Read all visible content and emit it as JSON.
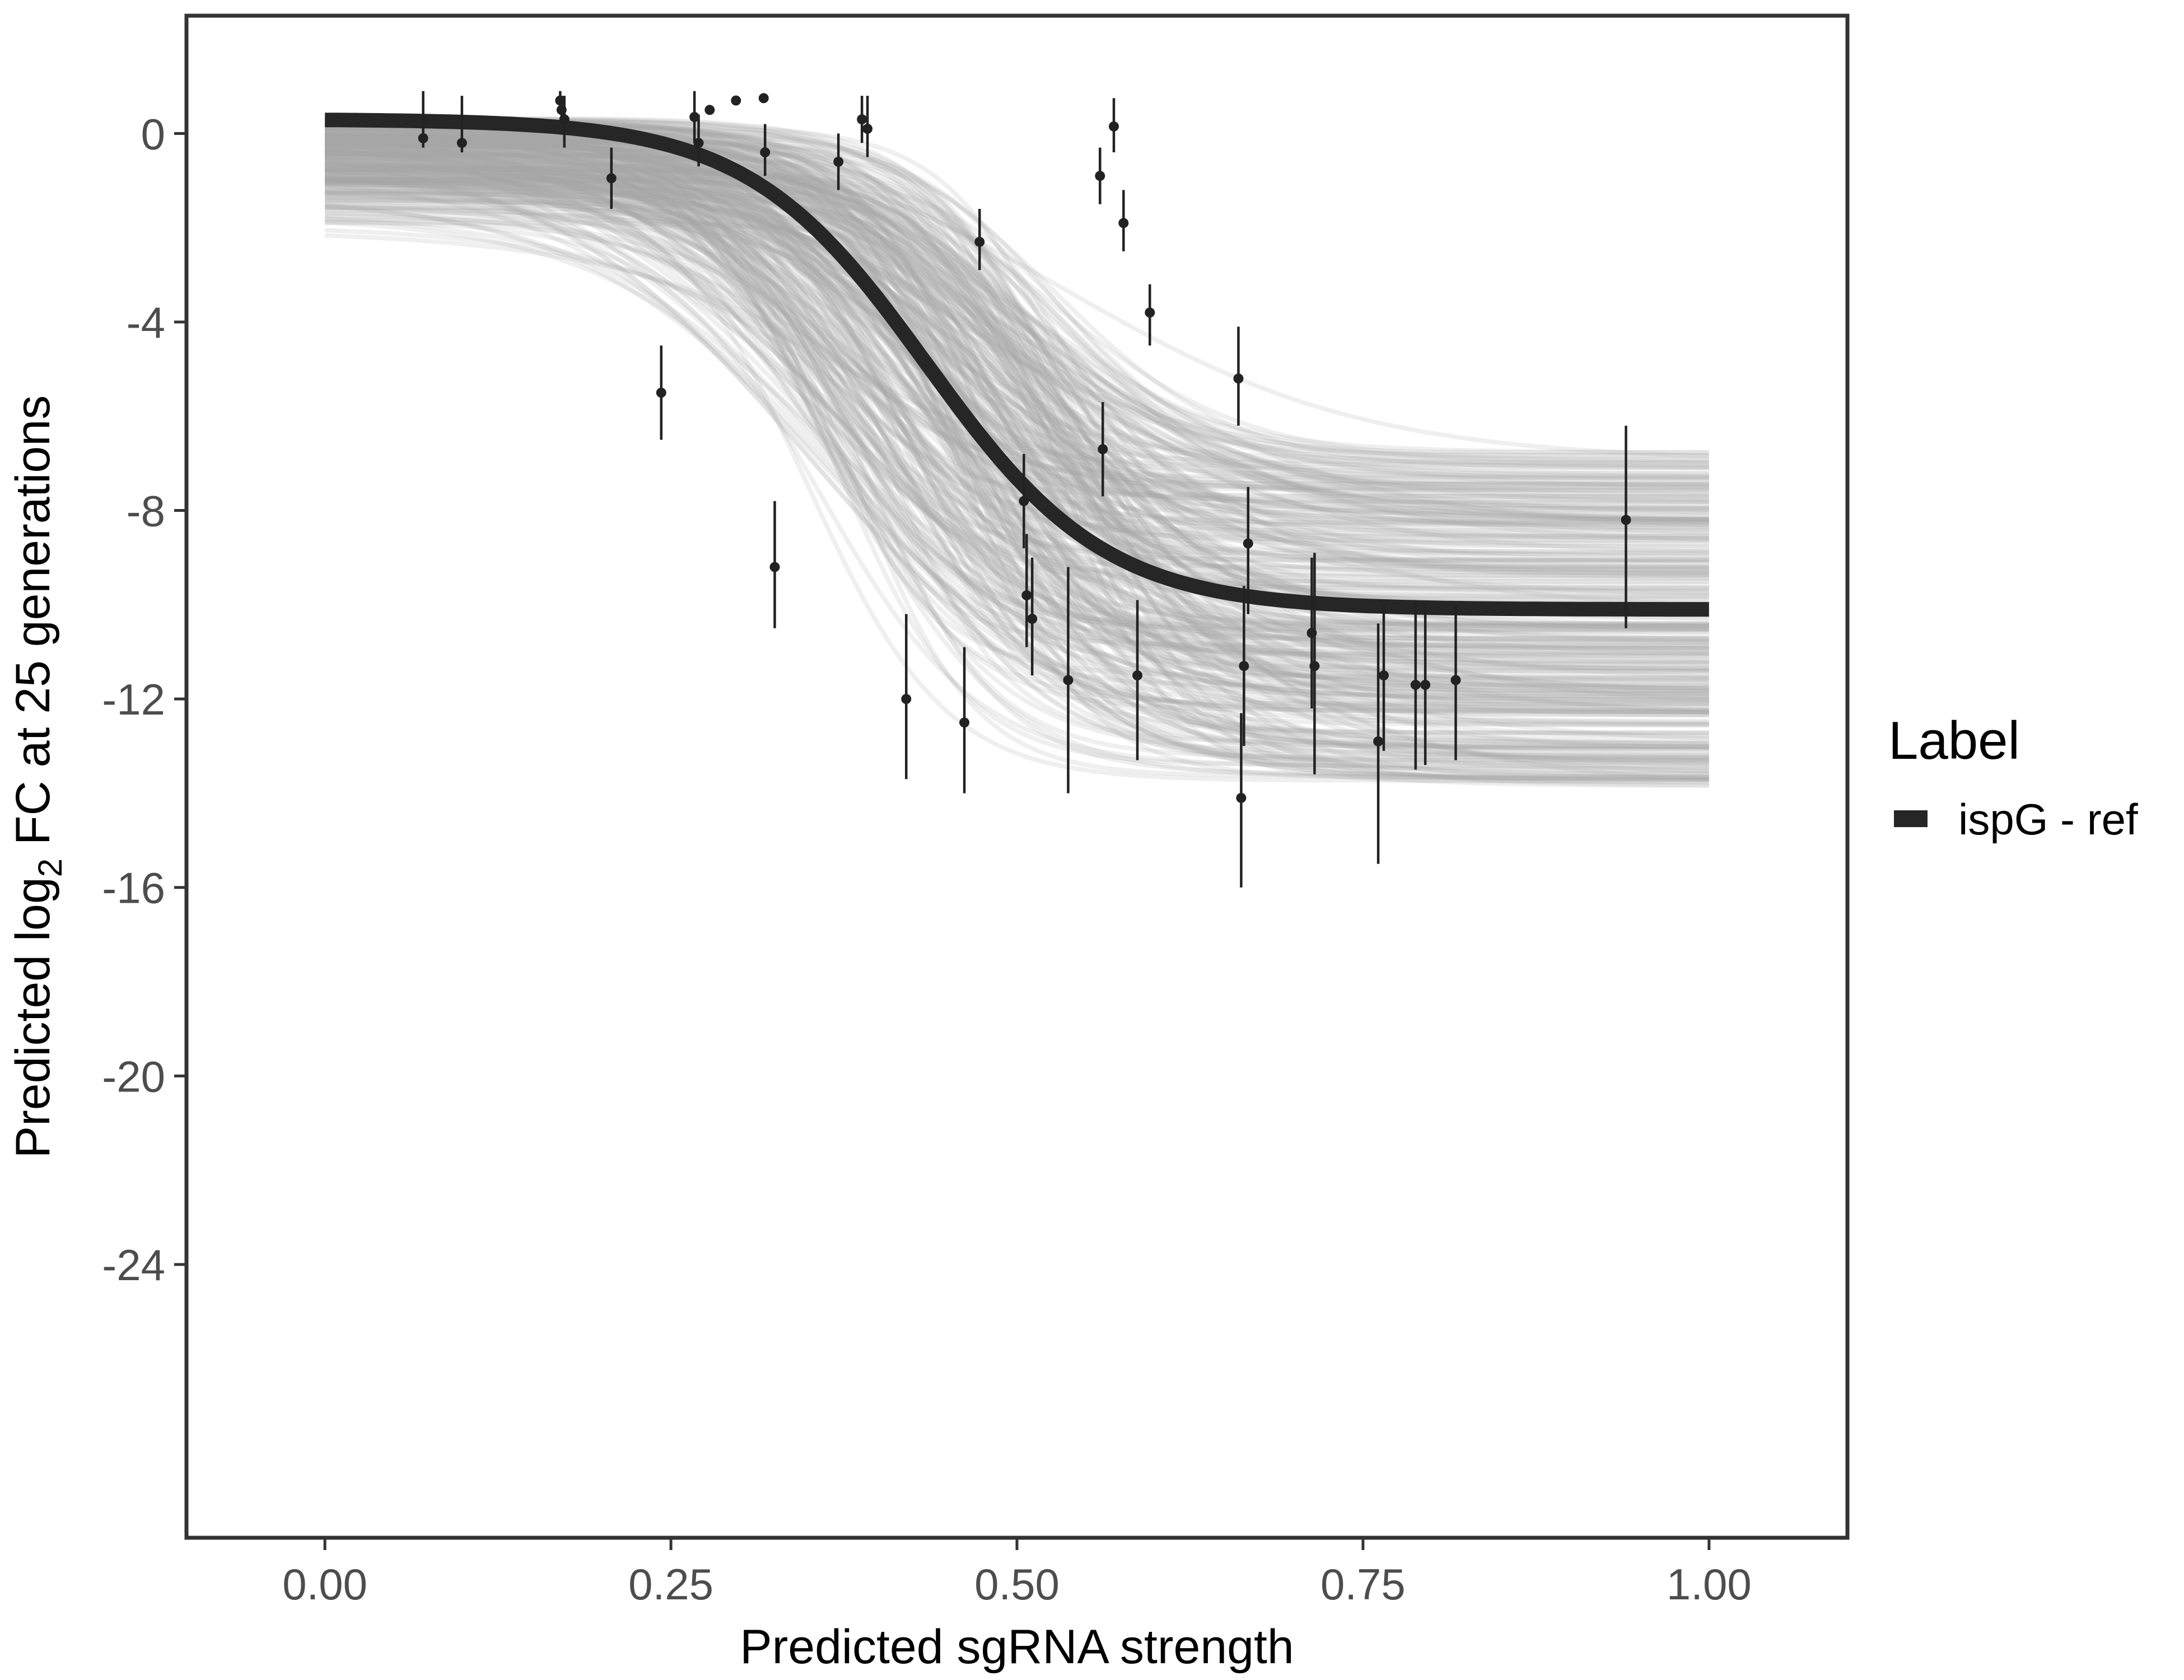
{
  "colors": {
    "background": "#ffffff",
    "panel_border": "#333333",
    "fit_line": "#262626",
    "posterior_draws": "#a6a6a6",
    "points": "#222222",
    "tick_text": "#4d4d4d"
  },
  "chart_data": {
    "type": "scatter",
    "xlabel": "Predicted sgRNA strength",
    "ylabel_prefix": "Predicted  log",
    "ylabel_subscript": "2",
    "ylabel_suffix": " FC at 25 generations",
    "xlim": [
      -0.1,
      1.1
    ],
    "ylim": [
      -29.8,
      2.5
    ],
    "x_ticks": [
      0.0,
      0.25,
      0.5,
      0.75,
      1.0
    ],
    "x_tick_labels": [
      "0.00",
      "0.25",
      "0.50",
      "0.75",
      "1.00"
    ],
    "y_ticks": [
      0,
      -4,
      -8,
      -12,
      -16,
      -20,
      -24
    ],
    "y_tick_labels": [
      "0",
      "-4",
      "-8",
      "-12",
      "-16",
      "-20",
      "-24"
    ],
    "grid": false,
    "legend": {
      "title": "Label",
      "entries": [
        {
          "label": "ispG - ref",
          "color": "#262626"
        }
      ],
      "position": "right"
    },
    "fit": {
      "name": "ispG - ref",
      "model": "logistic",
      "upper": 0.3,
      "lower": -10.1,
      "midpoint": 0.435,
      "steepness": 15.5
    },
    "posterior_draws": {
      "count": 320,
      "upper_range": [
        -2.2,
        0.35
      ],
      "lower_range": [
        -13.9,
        -6.7
      ],
      "midpoint_range": [
        0.34,
        0.55
      ],
      "steepness_range": [
        9,
        24
      ]
    },
    "points": [
      {
        "x": 0.071,
        "y": -0.1,
        "lo": -0.3,
        "hi": 0.9
      },
      {
        "x": 0.099,
        "y": -0.2,
        "lo": -0.4,
        "hi": 0.8
      },
      {
        "x": 0.17,
        "y": 0.7,
        "lo": 0.5,
        "hi": 0.9
      },
      {
        "x": 0.171,
        "y": 0.5,
        "lo": 0.2,
        "hi": 0.8
      },
      {
        "x": 0.173,
        "y": 0.3,
        "lo": -0.3,
        "hi": 0.8
      },
      {
        "x": 0.207,
        "y": -0.95,
        "lo": -1.6,
        "hi": -0.3
      },
      {
        "x": 0.243,
        "y": -5.5,
        "lo": -6.5,
        "hi": -4.5
      },
      {
        "x": 0.267,
        "y": 0.35,
        "lo": -0.2,
        "hi": 0.9
      },
      {
        "x": 0.27,
        "y": -0.2,
        "lo": -0.7,
        "hi": 0.4
      },
      {
        "x": 0.278,
        "y": 0.5,
        "lo": 0.45,
        "hi": 0.55
      },
      {
        "x": 0.297,
        "y": 0.7,
        "lo": 0.65,
        "hi": 0.75
      },
      {
        "x": 0.317,
        "y": 0.75,
        "lo": 0.7,
        "hi": 0.8
      },
      {
        "x": 0.318,
        "y": -0.4,
        "lo": -0.9,
        "hi": 0.2
      },
      {
        "x": 0.325,
        "y": -9.2,
        "lo": -10.5,
        "hi": -7.8
      },
      {
        "x": 0.371,
        "y": -0.6,
        "lo": -1.2,
        "hi": 0.0
      },
      {
        "x": 0.388,
        "y": 0.3,
        "lo": -0.2,
        "hi": 0.8
      },
      {
        "x": 0.392,
        "y": 0.1,
        "lo": -0.5,
        "hi": 0.8
      },
      {
        "x": 0.42,
        "y": -12.0,
        "lo": -13.7,
        "hi": -10.2
      },
      {
        "x": 0.462,
        "y": -12.5,
        "lo": -14.0,
        "hi": -10.9
      },
      {
        "x": 0.473,
        "y": -2.3,
        "lo": -2.9,
        "hi": -1.6
      },
      {
        "x": 0.505,
        "y": -7.8,
        "lo": -8.8,
        "hi": -6.8
      },
      {
        "x": 0.507,
        "y": -9.8,
        "lo": -10.9,
        "hi": -8.5
      },
      {
        "x": 0.511,
        "y": -10.3,
        "lo": -11.5,
        "hi": -9.0
      },
      {
        "x": 0.537,
        "y": -11.6,
        "lo": -14.0,
        "hi": -9.2
      },
      {
        "x": 0.56,
        "y": -0.9,
        "lo": -1.5,
        "hi": -0.3
      },
      {
        "x": 0.562,
        "y": -6.7,
        "lo": -7.7,
        "hi": -5.7
      },
      {
        "x": 0.57,
        "y": 0.15,
        "lo": -0.4,
        "hi": 0.75
      },
      {
        "x": 0.577,
        "y": -1.9,
        "lo": -2.5,
        "hi": -1.2
      },
      {
        "x": 0.587,
        "y": -11.5,
        "lo": -13.3,
        "hi": -9.9
      },
      {
        "x": 0.596,
        "y": -3.8,
        "lo": -4.5,
        "hi": -3.2
      },
      {
        "x": 0.66,
        "y": -5.2,
        "lo": -6.2,
        "hi": -4.1
      },
      {
        "x": 0.662,
        "y": -14.1,
        "lo": -16.0,
        "hi": -12.3
      },
      {
        "x": 0.664,
        "y": -11.3,
        "lo": -13.0,
        "hi": -9.6
      },
      {
        "x": 0.667,
        "y": -8.7,
        "lo": -10.2,
        "hi": -7.5
      },
      {
        "x": 0.713,
        "y": -10.6,
        "lo": -12.2,
        "hi": -9.0
      },
      {
        "x": 0.715,
        "y": -11.3,
        "lo": -13.6,
        "hi": -8.9
      },
      {
        "x": 0.761,
        "y": -12.9,
        "lo": -15.5,
        "hi": -10.4
      },
      {
        "x": 0.765,
        "y": -11.5,
        "lo": -13.1,
        "hi": -10.0
      },
      {
        "x": 0.788,
        "y": -11.7,
        "lo": -13.5,
        "hi": -9.9
      },
      {
        "x": 0.795,
        "y": -11.7,
        "lo": -13.4,
        "hi": -10.0
      },
      {
        "x": 0.817,
        "y": -11.6,
        "lo": -13.3,
        "hi": -10.0
      },
      {
        "x": 0.94,
        "y": -8.2,
        "lo": -10.5,
        "hi": -6.2
      }
    ]
  }
}
